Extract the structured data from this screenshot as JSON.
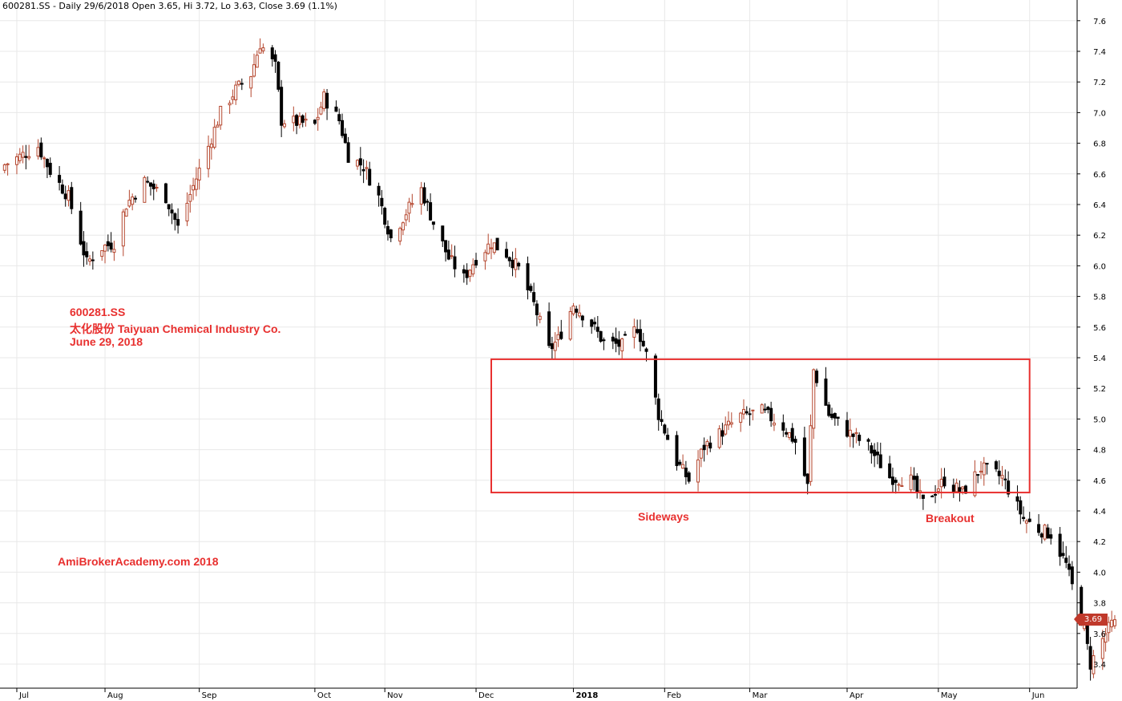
{
  "header": {
    "text": "600281.SS - Daily 29/6/2018 Open 3.65, Hi 3.72, Lo 3.63, Close 3.69 (1.1%)"
  },
  "annotations": {
    "ticker": "600281.SS",
    "company": "太化股份 Taiyuan Chemical Industry Co.",
    "date": "June 29, 2018",
    "sideways": "Sideways",
    "breakout": "Breakout",
    "watermark": "AmiBrokerAcademy.com  2018"
  },
  "price_tag": "3.69",
  "colors": {
    "up": "#b5472f",
    "down": "#000000",
    "box": "#e8302f",
    "grid": "#e8e8e8",
    "annotation": "#e8302f"
  },
  "chart_data": {
    "type": "candlestick",
    "ylim": [
      3.3,
      7.65
    ],
    "yticks": [
      "3.4",
      "3.6",
      "3.8",
      "4.0",
      "4.2",
      "4.4",
      "4.6",
      "4.8",
      "5.0",
      "5.2",
      "5.4",
      "5.6",
      "5.8",
      "6.0",
      "6.2",
      "6.4",
      "6.6",
      "6.8",
      "7.0",
      "7.2",
      "7.4",
      "7.6"
    ],
    "month_labels": [
      "Jul",
      "Aug",
      "Sep",
      "Oct",
      "Nov",
      "Dec",
      "2018",
      "Feb",
      "Mar",
      "Apr",
      "May",
      "Jun"
    ],
    "date_range": [
      "2017-06-29",
      "2018-06-29"
    ],
    "last_bar": {
      "date": "2018-06-29",
      "open": 3.65,
      "high": 3.72,
      "low": 3.63,
      "close": 3.69
    },
    "sideways_range": {
      "from": "2017-12-06",
      "to": "2018-06-01",
      "low": 4.52,
      "high": 5.39
    },
    "close_path": [
      [
        "2017-06-29",
        6.66
      ],
      [
        "2017-07-10",
        6.78
      ],
      [
        "2017-07-14",
        6.62
      ],
      [
        "2017-07-20",
        6.45
      ],
      [
        "2017-07-26",
        6.02
      ],
      [
        "2017-07-31",
        6.12
      ],
      [
        "2017-08-04",
        6.15
      ],
      [
        "2017-08-08",
        6.4
      ],
      [
        "2017-08-14",
        6.55
      ],
      [
        "2017-08-21",
        6.45
      ],
      [
        "2017-08-25",
        6.25
      ],
      [
        "2017-08-30",
        6.52
      ],
      [
        "2017-09-04",
        6.78
      ],
      [
        "2017-09-08",
        7.0
      ],
      [
        "2017-09-13",
        7.15
      ],
      [
        "2017-09-18",
        7.25
      ],
      [
        "2017-09-21",
        7.45
      ],
      [
        "2017-09-26",
        7.3
      ],
      [
        "2017-09-28",
        6.95
      ],
      [
        "2017-10-09",
        6.92
      ],
      [
        "2017-10-12",
        7.1
      ],
      [
        "2017-10-17",
        6.95
      ],
      [
        "2017-10-20",
        6.72
      ],
      [
        "2017-10-25",
        6.65
      ],
      [
        "2017-10-30",
        6.45
      ],
      [
        "2017-11-03",
        6.18
      ],
      [
        "2017-11-08",
        6.35
      ],
      [
        "2017-11-13",
        6.5
      ],
      [
        "2017-11-17",
        6.28
      ],
      [
        "2017-11-22",
        6.05
      ],
      [
        "2017-11-27",
        5.92
      ],
      [
        "2017-12-01",
        6.05
      ],
      [
        "2017-12-06",
        6.15
      ],
      [
        "2017-12-11",
        6.08
      ],
      [
        "2017-12-15",
        5.98
      ],
      [
        "2017-12-20",
        5.75
      ],
      [
        "2017-12-25",
        5.45
      ],
      [
        "2017-12-28",
        5.52
      ],
      [
        "2018-01-02",
        5.75
      ],
      [
        "2018-01-08",
        5.62
      ],
      [
        "2018-01-12",
        5.5
      ],
      [
        "2018-01-18",
        5.48
      ],
      [
        "2018-01-23",
        5.6
      ],
      [
        "2018-01-26",
        5.42
      ],
      [
        "2018-01-30",
        5.03
      ],
      [
        "2018-02-05",
        4.72
      ],
      [
        "2018-02-09",
        4.6
      ],
      [
        "2018-02-14",
        4.82
      ],
      [
        "2018-02-26",
        5.02
      ],
      [
        "2018-03-05",
        5.05
      ],
      [
        "2018-03-12",
        4.95
      ],
      [
        "2018-03-16",
        4.85
      ],
      [
        "2018-03-20",
        4.56
      ],
      [
        "2018-03-22",
        5.32
      ],
      [
        "2018-03-27",
        5.03
      ],
      [
        "2018-04-02",
        4.92
      ],
      [
        "2018-04-09",
        4.82
      ],
      [
        "2018-04-16",
        4.62
      ],
      [
        "2018-04-23",
        4.6
      ],
      [
        "2018-04-27",
        4.45
      ],
      [
        "2018-05-04",
        4.6
      ],
      [
        "2018-05-10",
        4.52
      ],
      [
        "2018-05-16",
        4.68
      ],
      [
        "2018-05-23",
        4.62
      ],
      [
        "2018-05-30",
        4.35
      ],
      [
        "2018-06-04",
        4.28
      ],
      [
        "2018-06-08",
        4.25
      ],
      [
        "2018-06-13",
        4.05
      ],
      [
        "2018-06-19",
        3.62
      ],
      [
        "2018-06-21",
        3.4
      ],
      [
        "2018-06-26",
        3.6
      ],
      [
        "2018-06-29",
        3.69
      ]
    ]
  }
}
